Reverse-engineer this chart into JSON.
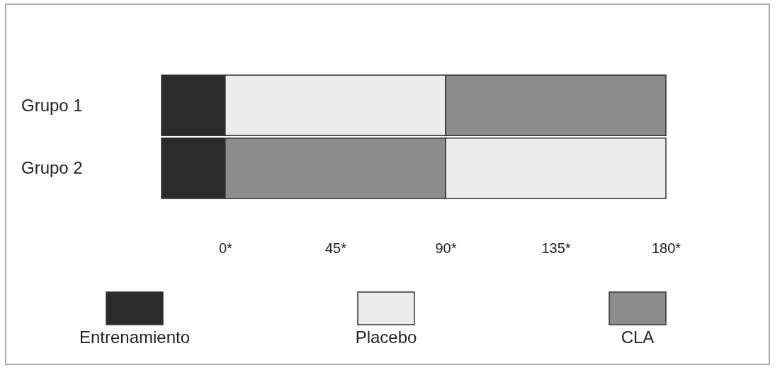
{
  "chart_data": {
    "type": "bar",
    "orientation": "horizontal",
    "categories": [
      "Grupo 1",
      "Grupo 2"
    ],
    "series": [
      {
        "name": "Entrenamiento",
        "color": "#2b2b2b",
        "base": [
          -26,
          -26
        ],
        "values": [
          26,
          26
        ]
      },
      {
        "name": "Placebo",
        "color": "#ececec",
        "base": [
          0,
          90
        ],
        "values": [
          90,
          90
        ]
      },
      {
        "name": "CLA",
        "color": "#8c8c8c",
        "base": [
          90,
          0
        ],
        "values": [
          90,
          90
        ]
      }
    ],
    "xlim": [
      -26,
      180
    ],
    "xticks": [
      {
        "value": 0,
        "label": "0*"
      },
      {
        "value": 45,
        "label": "45*"
      },
      {
        "value": 90,
        "label": "90*"
      },
      {
        "value": 135,
        "label": "135*"
      },
      {
        "value": 180,
        "label": "180*"
      }
    ],
    "legend": "bottom"
  }
}
